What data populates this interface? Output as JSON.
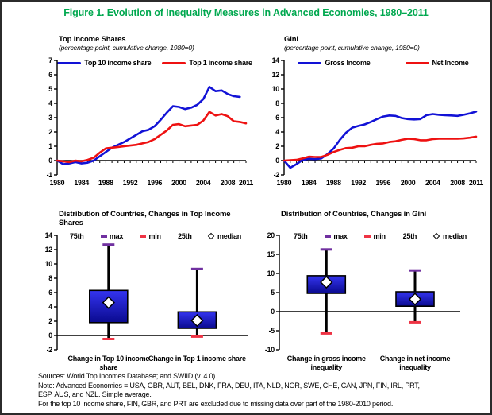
{
  "title": "Figure 1. Evolution of Inequality Measures in Advanced Economies, 1980–2011",
  "colors": {
    "title_green": "#00A84F",
    "line_blue": "#1212D6",
    "line_red": "#EE1111",
    "box_fill_top": "#3434F0",
    "box_fill_bottom": "#0A0A8E",
    "max_cap": "#7030A0",
    "min_cap": "#EE3344",
    "axis_black": "#000000"
  },
  "box_legend": {
    "p75": "75th",
    "max": "max",
    "min": "min",
    "p25": "25th",
    "median": "median"
  },
  "chart_data": [
    {
      "type": "line",
      "title": "Top Income Shares",
      "subtitle": "(percentage point, cumulative change, 1980=0)",
      "ylabel": "percentage point, cumulative change since 1980",
      "ylim": [
        -1,
        7
      ],
      "ystep": 1,
      "x": [
        1980,
        1981,
        1982,
        1983,
        1984,
        1985,
        1986,
        1987,
        1988,
        1989,
        1990,
        1991,
        1992,
        1993,
        1994,
        1995,
        1996,
        1997,
        1998,
        1999,
        2000,
        2001,
        2002,
        2003,
        2004,
        2005,
        2006,
        2007,
        2008,
        2009,
        2010,
        2011
      ],
      "xticks": [
        1980,
        1984,
        1988,
        1992,
        1996,
        2000,
        2004,
        2008,
        2011
      ],
      "series": [
        {
          "name": "Top 10 income share",
          "color": "#1212D6",
          "values": [
            0,
            -0.25,
            -0.2,
            -0.1,
            -0.2,
            -0.15,
            0,
            0.3,
            0.6,
            0.9,
            1.1,
            1.3,
            1.55,
            1.8,
            2.05,
            2.15,
            2.4,
            2.85,
            3.35,
            3.8,
            3.75,
            3.6,
            3.7,
            3.9,
            4.3,
            5.15,
            4.85,
            4.9,
            4.65,
            4.5,
            4.45,
            null
          ]
        },
        {
          "name": "Top 1 income share",
          "color": "#EE1111",
          "values": [
            0,
            -0.05,
            -0.1,
            0,
            -0.05,
            0.05,
            0.2,
            0.55,
            0.85,
            0.9,
            0.95,
            1.0,
            1.05,
            1.1,
            1.2,
            1.3,
            1.5,
            1.8,
            2.1,
            2.5,
            2.55,
            2.4,
            2.45,
            2.5,
            2.8,
            3.4,
            3.15,
            3.25,
            3.1,
            2.75,
            2.7,
            2.6
          ]
        }
      ]
    },
    {
      "type": "line",
      "title": "Gini",
      "subtitle": "(percentage point, cumulative change, 1980=0)",
      "ylabel": "percentage point, cumulative change since 1980",
      "ylim": [
        -2,
        14
      ],
      "ystep": 2,
      "x": [
        1980,
        1981,
        1982,
        1983,
        1984,
        1985,
        1986,
        1987,
        1988,
        1989,
        1990,
        1991,
        1992,
        1993,
        1994,
        1995,
        1996,
        1997,
        1998,
        1999,
        2000,
        2001,
        2002,
        2003,
        2004,
        2005,
        2006,
        2007,
        2008,
        2009,
        2010,
        2011
      ],
      "xticks": [
        1980,
        1984,
        1988,
        1992,
        1996,
        2000,
        2004,
        2008,
        2011
      ],
      "series": [
        {
          "name": "Gross Income",
          "color": "#1212D6",
          "values": [
            0,
            -1,
            -0.5,
            0.1,
            0.25,
            0.2,
            0.3,
            0.9,
            1.7,
            2.9,
            3.9,
            4.6,
            4.85,
            5.05,
            5.4,
            5.8,
            6.15,
            6.3,
            6.25,
            5.95,
            5.8,
            5.75,
            5.8,
            6.35,
            6.5,
            6.4,
            6.35,
            6.3,
            6.25,
            6.4,
            6.6,
            6.85
          ]
        },
        {
          "name": "Net Income",
          "color": "#EE1111",
          "values": [
            0,
            0.05,
            0.1,
            0.3,
            0.55,
            0.5,
            0.5,
            0.8,
            1.2,
            1.5,
            1.75,
            1.8,
            2.0,
            2.0,
            2.2,
            2.35,
            2.4,
            2.6,
            2.7,
            2.9,
            3.05,
            3.0,
            2.85,
            2.85,
            3.0,
            3.05,
            3.05,
            3.05,
            3.05,
            3.1,
            3.2,
            3.35
          ]
        }
      ]
    },
    {
      "type": "box",
      "title": "Distribution of Countries, Changes in Top Income Shares",
      "ylim": [
        -2,
        14
      ],
      "ystep": 2,
      "categories": [
        "Change in Top 10 income share",
        "Change in Top 1 income share"
      ],
      "boxes": [
        {
          "min": -0.5,
          "q25": 1.8,
          "median": 4.6,
          "q75": 6.3,
          "max": 12.7
        },
        {
          "min": -0.15,
          "q25": 1.0,
          "median": 2.1,
          "q75": 3.3,
          "max": 9.3
        }
      ]
    },
    {
      "type": "box",
      "title": "Distribution of Countries, Changes in Gini",
      "ylim": [
        -10,
        20
      ],
      "ystep": 5,
      "categories": [
        "Change in gross income inequality",
        "Change in net income inequality"
      ],
      "boxes": [
        {
          "min": -5.7,
          "q25": 4.8,
          "median": 7.7,
          "q75": 9.4,
          "max": 16.3
        },
        {
          "min": -2.8,
          "q25": 1.4,
          "median": 3.3,
          "q75": 5.2,
          "max": 10.8
        }
      ]
    }
  ],
  "footer": {
    "lines": [
      "Sources: World Top Incomes Database; and SWIID (v. 4.0).",
      "Note: Advanced Economies = USA, GBR, AUT, BEL, DNK, FRA, DEU, ITA, NLD, NOR, SWE, CHE, CAN, JPN, FIN, IRL, PRT,",
      "ESP, AUS, and NZL. Simple average.",
      "For the top 10 income share, FIN, GBR, and PRT are excluded due to missing data over part of the 1980-2010 period."
    ]
  }
}
